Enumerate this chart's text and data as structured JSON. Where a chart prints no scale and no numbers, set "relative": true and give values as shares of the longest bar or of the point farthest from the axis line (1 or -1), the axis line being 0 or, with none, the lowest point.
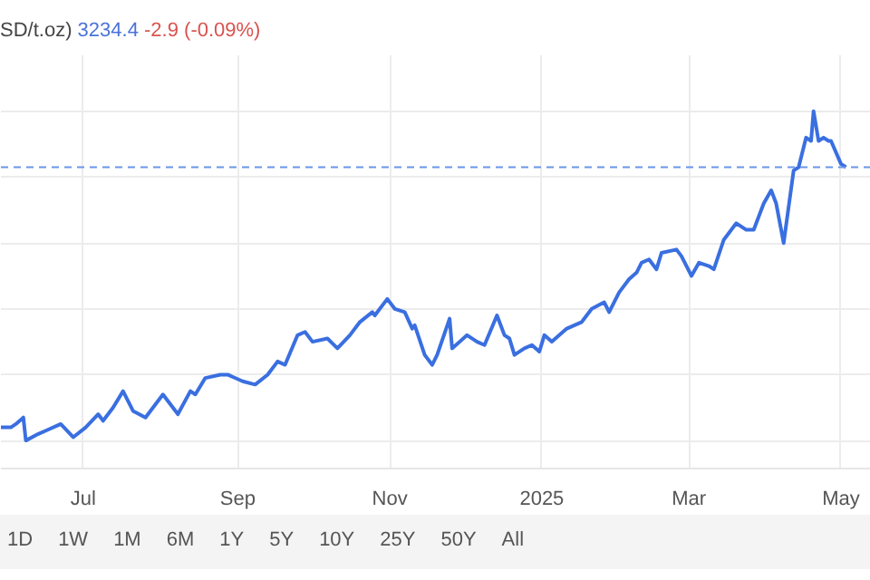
{
  "chart_data": {
    "type": "line",
    "relative": true,
    "title": "SD/t.oz)",
    "annotations": [
      "3234.4",
      "-2.9 (-0.09%)",
      "1D",
      "1W",
      "1M",
      "6M",
      "1Y",
      "5Y",
      "10Y",
      "25Y",
      "50Y",
      "All"
    ],
    "xlim": [
      "2024-05-29",
      "2025-05-13"
    ],
    "xticks": [
      {
        "value": "2024-07-01",
        "label": "Jul"
      },
      {
        "value": "2024-09-01",
        "label": "Sep"
      },
      {
        "value": "2024-11-01",
        "label": "Nov"
      },
      {
        "value": "2025-01-01",
        "label": "2025"
      },
      {
        "value": "2025-03-01",
        "label": "Mar"
      },
      {
        "value": "2025-05-01",
        "label": "May"
      }
    ],
    "grid": true,
    "marker": "none",
    "line_style": "solid",
    "ref_lines": [
      {
        "axis": "y",
        "value": 0.83,
        "color": "#6a96e8",
        "line_style": "dashed"
      }
    ],
    "x": [
      "2024-05-29",
      "2024-06-02",
      "2024-06-04",
      "2024-06-07",
      "2024-06-08",
      "2024-06-13",
      "2024-06-16",
      "2024-06-22",
      "2024-06-27",
      "2024-07-02",
      "2024-07-07",
      "2024-07-09",
      "2024-07-13",
      "2024-07-17",
      "2024-07-21",
      "2024-07-26",
      "2024-08-02",
      "2024-08-08",
      "2024-08-13",
      "2024-08-15",
      "2024-08-19",
      "2024-08-25",
      "2024-08-28",
      "2024-09-03",
      "2024-09-08",
      "2024-09-13",
      "2024-09-17",
      "2024-09-20",
      "2024-09-25",
      "2024-09-28",
      "2024-10-01",
      "2024-10-07",
      "2024-10-11",
      "2024-10-16",
      "2024-10-20",
      "2024-10-25",
      "2024-10-26",
      "2024-10-31",
      "2024-11-03",
      "2024-11-07",
      "2024-11-10",
      "2024-11-11",
      "2024-11-15",
      "2024-11-18",
      "2024-11-20",
      "2024-11-25",
      "2024-11-26",
      "2024-12-02",
      "2024-12-06",
      "2024-12-09",
      "2024-12-14",
      "2024-12-17",
      "2024-12-19",
      "2024-12-21",
      "2024-12-25",
      "2024-12-28",
      "2024-12-31",
      "2025-01-02",
      "2025-01-05",
      "2025-01-11",
      "2025-01-17",
      "2025-01-21",
      "2025-01-26",
      "2025-01-28",
      "2025-02-01",
      "2025-02-05",
      "2025-02-08",
      "2025-02-10",
      "2025-02-13",
      "2025-02-16",
      "2025-02-18",
      "2025-02-24",
      "2025-02-26",
      "2025-03-02",
      "2025-03-05",
      "2025-03-09",
      "2025-03-11",
      "2025-03-15",
      "2025-03-20",
      "2025-03-24",
      "2025-03-27",
      "2025-03-31",
      "2025-04-03",
      "2025-04-05",
      "2025-04-08",
      "2025-04-12",
      "2025-04-14",
      "2025-04-17",
      "2025-04-19",
      "2025-04-20",
      "2025-04-22",
      "2025-04-24",
      "2025-04-26",
      "2025-04-27",
      "2025-05-01",
      "2025-05-03"
    ],
    "series": [
      {
        "color": "#3a6fe0",
        "values": [
          0.04,
          0.04,
          0.05,
          0.07,
          0,
          0.02,
          0.03,
          0.05,
          0.01,
          0.04,
          0.08,
          0.06,
          0.1,
          0.15,
          0.09,
          0.07,
          0.14,
          0.08,
          0.15,
          0.14,
          0.19,
          0.2,
          0.2,
          0.18,
          0.17,
          0.2,
          0.24,
          0.23,
          0.32,
          0.33,
          0.3,
          0.31,
          0.28,
          0.32,
          0.36,
          0.39,
          0.38,
          0.43,
          0.4,
          0.39,
          0.34,
          0.35,
          0.26,
          0.23,
          0.26,
          0.37,
          0.28,
          0.32,
          0.3,
          0.29,
          0.38,
          0.32,
          0.31,
          0.26,
          0.28,
          0.29,
          0.27,
          0.32,
          0.3,
          0.34,
          0.36,
          0.4,
          0.42,
          0.39,
          0.45,
          0.49,
          0.51,
          0.54,
          0.55,
          0.52,
          0.57,
          0.58,
          0.56,
          0.5,
          0.54,
          0.53,
          0.52,
          0.61,
          0.66,
          0.64,
          0.64,
          0.72,
          0.76,
          0.72,
          0.6,
          0.82,
          0.83,
          0.92,
          0.91,
          1,
          0.91,
          0.92,
          0.91,
          0.91,
          0.84,
          0.83
        ]
      }
    ]
  }
}
